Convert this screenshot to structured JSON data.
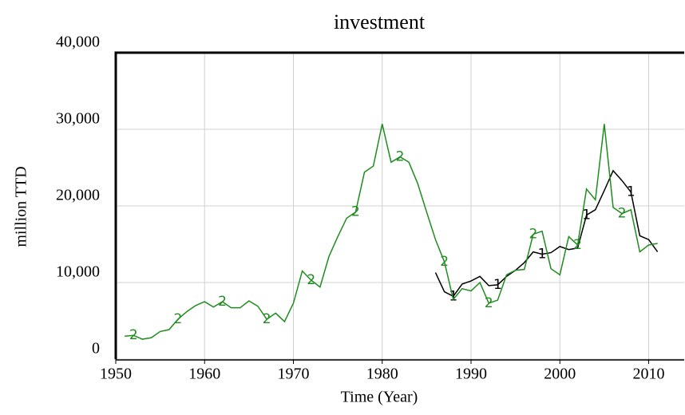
{
  "chart_data": {
    "type": "line",
    "title": "investment",
    "xlabel": "Time (Year)",
    "ylabel": "million TTD",
    "xlim": [
      1950,
      2014
    ],
    "xticks": [
      1950,
      1960,
      1970,
      1980,
      1990,
      2000,
      2010
    ],
    "ylim": [
      0,
      40000
    ],
    "yticks": [
      0,
      {
        "value": 10000,
        "label": "10,000"
      },
      {
        "value": 20000,
        "label": "20,000"
      },
      {
        "value": 30000,
        "label": "30,000"
      },
      {
        "value": 40000,
        "label": "40,000"
      }
    ],
    "grid": true,
    "series": [
      {
        "name": "1",
        "color": "#000000",
        "x": [
          1986,
          1987,
          1988,
          1989,
          1990,
          1991,
          1992,
          1993,
          1994,
          1995,
          1996,
          1997,
          1998,
          1999,
          2000,
          2001,
          2002,
          2003,
          2004,
          2005,
          2006,
          2007,
          2008,
          2009,
          2010,
          2011
        ],
        "values": [
          11300,
          8800,
          8200,
          9800,
          10200,
          10800,
          9600,
          9700,
          10800,
          11600,
          12600,
          14000,
          13700,
          13900,
          14700,
          14300,
          14500,
          18800,
          19500,
          22000,
          24600,
          23300,
          21800,
          16100,
          15600,
          14000
        ]
      },
      {
        "name": "2",
        "color": "#1e8c1e",
        "x": [
          1951,
          1952,
          1953,
          1954,
          1955,
          1956,
          1957,
          1958,
          1959,
          1960,
          1961,
          1962,
          1963,
          1964,
          1965,
          1966,
          1967,
          1968,
          1969,
          1970,
          1971,
          1972,
          1973,
          1974,
          1975,
          1976,
          1977,
          1978,
          1979,
          1980,
          1981,
          1982,
          1983,
          1984,
          1985,
          1986,
          1987,
          1988,
          1989,
          1990,
          1991,
          1992,
          1993,
          1994,
          1995,
          1996,
          1997,
          1998,
          1999,
          2000,
          2001,
          2002,
          2003,
          2004,
          2005,
          2006,
          2007,
          2008,
          2009,
          2010,
          2011
        ],
        "values": [
          3000,
          3100,
          2600,
          2800,
          3600,
          3850,
          5200,
          6200,
          7000,
          7500,
          6800,
          7500,
          6700,
          6700,
          7600,
          6900,
          5200,
          6000,
          4900,
          7300,
          11500,
          10300,
          9400,
          13400,
          16000,
          18400,
          19200,
          24400,
          25200,
          30700,
          25700,
          26400,
          25700,
          22900,
          19200,
          15600,
          12700,
          7800,
          9200,
          8900,
          10000,
          7300,
          7700,
          11000,
          11600,
          11700,
          16300,
          16700,
          11800,
          11000,
          16000,
          14900,
          22200,
          20800,
          30700,
          19800,
          19000,
          19500,
          14000,
          14900,
          15100
        ]
      }
    ]
  }
}
